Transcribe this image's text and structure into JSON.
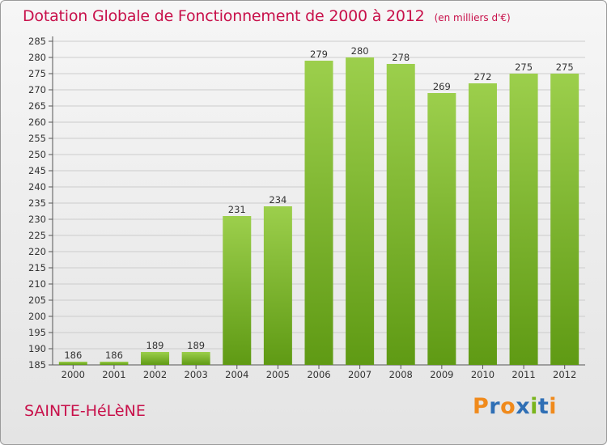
{
  "chart_data": {
    "type": "bar",
    "title": "Dotation Globale de Fonctionnement de 2000 à 2012",
    "subtitle": "(en milliers d'€)",
    "categories": [
      "2000",
      "2001",
      "2002",
      "2003",
      "2004",
      "2005",
      "2006",
      "2007",
      "2008",
      "2009",
      "2010",
      "2011",
      "2012"
    ],
    "values": [
      186,
      186,
      189,
      189,
      231,
      234,
      279,
      280,
      278,
      269,
      272,
      275,
      275
    ],
    "ylim": [
      185,
      285
    ],
    "yticks": [
      185,
      190,
      195,
      200,
      205,
      210,
      215,
      220,
      225,
      230,
      235,
      240,
      245,
      250,
      255,
      260,
      265,
      270,
      275,
      280,
      285
    ],
    "grid": true,
    "bar_colors": {
      "top": "#9ccf4c",
      "bottom": "#5f9a14"
    },
    "axis_color": "#555555",
    "grid_color": "#cccccc"
  },
  "commune": "SAINTE-HéLèNE",
  "logo": {
    "letters": [
      {
        "char": "P",
        "color": "#f08a1c"
      },
      {
        "char": "r",
        "color": "#2f6fb5"
      },
      {
        "char": "o",
        "color": "#f08a1c"
      },
      {
        "char": "x",
        "color": "#2f6fb5"
      },
      {
        "char": "i",
        "color": "#7ab51d"
      },
      {
        "char": "t",
        "color": "#2f6fb5"
      },
      {
        "char": "i",
        "color": "#f08a1c"
      }
    ]
  }
}
